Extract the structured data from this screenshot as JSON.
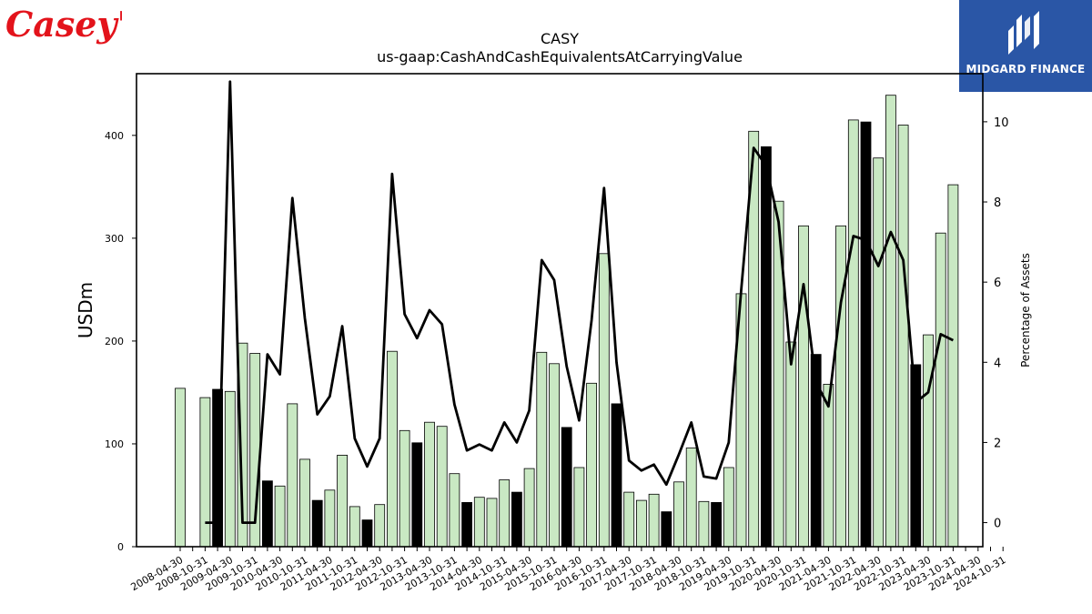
{
  "logos": {
    "left": "Casey's",
    "right": "MIDGARD FINANCE"
  },
  "chart_data": {
    "type": "bar",
    "title": "CASY",
    "subtitle": "us-gaap:CashAndCashEquivalentsAtCarryingValue",
    "ylabel": "USDm",
    "y2label": "Percentage of Assets",
    "ylim": [
      0,
      460
    ],
    "y2lim": [
      -0.6,
      11.2
    ],
    "yticks": [
      0,
      100,
      200,
      300,
      400
    ],
    "y2ticks": [
      0,
      2,
      4,
      6,
      8,
      10
    ],
    "grid": false,
    "colors": {
      "bar": "#c9e8c3",
      "bar_q4": "#000000",
      "edge": "#000000",
      "line": "#000000"
    },
    "categories": [
      "2008-04-30",
      "2008-07-31",
      "2008-10-31",
      "2009-01-31",
      "2009-04-30",
      "2009-07-31",
      "2009-10-31",
      "2010-01-31",
      "2010-04-30",
      "2010-07-31",
      "2010-10-31",
      "2011-01-31",
      "2011-04-30",
      "2011-07-31",
      "2011-10-31",
      "2012-01-31",
      "2012-04-30",
      "2012-07-31",
      "2012-10-31",
      "2013-01-31",
      "2013-04-30",
      "2013-07-31",
      "2013-10-31",
      "2014-01-31",
      "2014-04-30",
      "2014-07-31",
      "2014-10-31",
      "2015-01-31",
      "2015-04-30",
      "2015-07-31",
      "2015-10-31",
      "2016-01-31",
      "2016-04-30",
      "2016-07-31",
      "2016-10-31",
      "2017-01-31",
      "2017-04-30",
      "2017-07-31",
      "2017-10-31",
      "2018-01-31",
      "2018-04-30",
      "2018-07-31",
      "2018-10-31",
      "2019-01-31",
      "2019-04-30",
      "2019-07-31",
      "2019-10-31",
      "2020-01-31",
      "2020-04-30",
      "2020-07-31",
      "2020-10-31",
      "2021-01-31",
      "2021-04-30",
      "2021-07-31",
      "2021-10-31",
      "2022-01-31",
      "2022-04-30",
      "2022-07-31",
      "2022-10-31",
      "2023-01-31",
      "2023-04-30",
      "2023-07-31",
      "2023-10-31",
      "2024-01-31",
      "2024-04-30",
      "2024-07-31",
      "2024-10-31"
    ],
    "xtick_labels": [
      "2008-04-30",
      "2008-10-31",
      "2009-04-30",
      "2009-10-31",
      "2010-04-30",
      "2010-10-31",
      "2011-04-30",
      "2011-10-31",
      "2012-04-30",
      "2012-10-31",
      "2013-04-30",
      "2013-10-31",
      "2014-04-30",
      "2014-10-31",
      "2015-04-30",
      "2015-10-31",
      "2016-04-30",
      "2016-10-31",
      "2017-04-30",
      "2017-10-31",
      "2018-04-30",
      "2018-10-31",
      "2019-04-30",
      "2019-10-31",
      "2020-04-30",
      "2020-10-31",
      "2021-04-30",
      "2021-10-31",
      "2022-04-30",
      "2022-10-31",
      "2023-04-30",
      "2023-10-31",
      "2024-04-30",
      "2024-10-31"
    ],
    "series": [
      {
        "name": "USDm",
        "type": "bar",
        "values": [
          154,
          null,
          145,
          153,
          151,
          198,
          188,
          64,
          59,
          139,
          85,
          45,
          55,
          89,
          39,
          26,
          41,
          190,
          113,
          101,
          121,
          117,
          71,
          43,
          48,
          47,
          65,
          53,
          76,
          189,
          178,
          116,
          77,
          159,
          285,
          139,
          53,
          45,
          51,
          34,
          63,
          96,
          44,
          43,
          77,
          246,
          404,
          389,
          336,
          199,
          312,
          187,
          158,
          312,
          415,
          413,
          378,
          439,
          410,
          177,
          206,
          305,
          352,
          null,
          null,
          null,
          null
        ],
        "highlight_q4": [
          false,
          null,
          false,
          true,
          false,
          false,
          false,
          true,
          false,
          false,
          false,
          true,
          false,
          false,
          false,
          true,
          false,
          false,
          false,
          true,
          false,
          false,
          false,
          true,
          false,
          false,
          false,
          true,
          false,
          false,
          false,
          true,
          false,
          false,
          false,
          true,
          false,
          false,
          false,
          true,
          false,
          false,
          false,
          true,
          false,
          false,
          false,
          true,
          false,
          false,
          false,
          true,
          false,
          false,
          false,
          true,
          false,
          false,
          false,
          true,
          false,
          false,
          false,
          null,
          null,
          null,
          null
        ]
      },
      {
        "name": "Percentage of Assets",
        "type": "line",
        "axis": "right",
        "values": [
          0.0,
          null,
          0.0,
          0.0,
          11.0,
          0.0,
          0.0,
          4.2,
          3.7,
          8.1,
          5.1,
          2.7,
          3.15,
          4.9,
          2.1,
          1.4,
          2.1,
          8.7,
          5.2,
          4.6,
          5.3,
          4.95,
          2.95,
          1.8,
          1.95,
          1.8,
          2.5,
          2.0,
          2.8,
          6.55,
          6.05,
          3.9,
          2.55,
          5.05,
          8.35,
          4.0,
          1.55,
          1.3,
          1.45,
          0.95,
          1.7,
          2.5,
          1.15,
          1.1,
          2.0,
          5.8,
          9.35,
          8.9,
          7.5,
          3.95,
          5.95,
          3.5,
          2.9,
          5.5,
          7.15,
          7.05,
          6.4,
          7.25,
          6.55,
          3.0,
          3.25,
          4.7,
          4.55,
          null,
          null,
          null,
          null
        ]
      }
    ]
  }
}
